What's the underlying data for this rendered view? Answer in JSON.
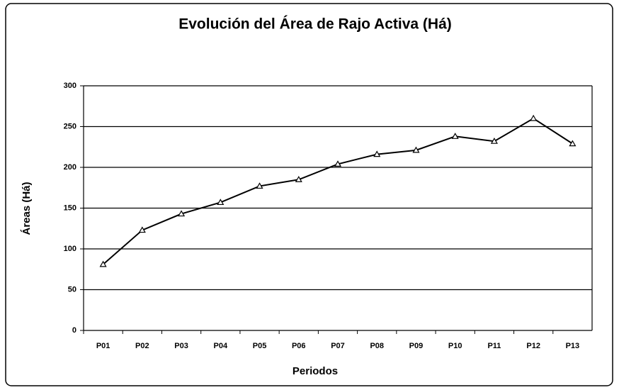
{
  "chart_data": {
    "type": "line",
    "title": "Evolución del Área de Rajo Activa (Há)",
    "x_label": "Periodos",
    "y_label": "Áreas (Há)",
    "categories": [
      "P01",
      "P02",
      "P03",
      "P04",
      "P05",
      "P06",
      "P07",
      "P08",
      "P09",
      "P10",
      "P11",
      "P12",
      "P13"
    ],
    "values": [
      81,
      123,
      143,
      157,
      177,
      185,
      204,
      216,
      221,
      238,
      232,
      260,
      229
    ],
    "color": "#000000",
    "ylim": [
      0,
      300
    ],
    "yticks": [
      0,
      50,
      100,
      150,
      200,
      250,
      300
    ],
    "grid": true
  }
}
